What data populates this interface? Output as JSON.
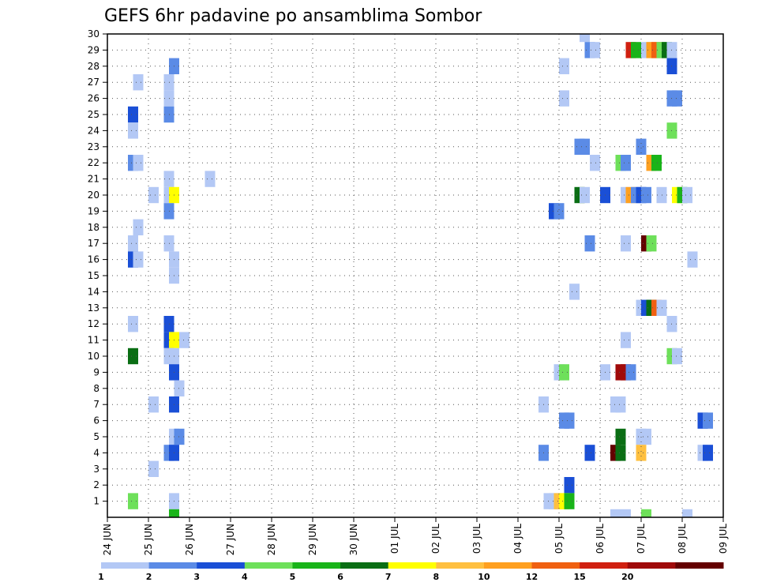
{
  "chart_data": {
    "type": "heatmap",
    "title": "GEFS 6hr padavine po ansamblima Sombor",
    "xlabel": "",
    "ylabel": "",
    "x_ticks": [
      "24 JUN",
      "25 JUN",
      "26 JUN",
      "27 JUN",
      "28 JUN",
      "29 JUN",
      "30 JUN",
      "01 JUL",
      "02 JUL",
      "03 JUL",
      "04 JUL",
      "05 JUL",
      "06 JUL",
      "07 JUL",
      "08 JUL",
      "09 JUL"
    ],
    "y_ticks": [
      1,
      2,
      3,
      4,
      5,
      6,
      7,
      8,
      9,
      10,
      11,
      12,
      13,
      14,
      15,
      16,
      17,
      18,
      19,
      20,
      21,
      22,
      23,
      24,
      25,
      26,
      27,
      28,
      29,
      30
    ],
    "xlim_days": [
      0,
      15
    ],
    "ylim": [
      0,
      30
    ],
    "grid": true,
    "colorbar": {
      "labels": [
        "1",
        "2",
        "3",
        "4",
        "5",
        "6",
        "7",
        "8",
        "10",
        "12",
        "15",
        "20"
      ],
      "colors": [
        "#b3c8f5",
        "#5b8be6",
        "#1a4fd6",
        "#6ee05a",
        "#19b419",
        "#0a6e14",
        "#ffff00",
        "#ffc040",
        "#ffa020",
        "#f06010",
        "#d02010",
        "#a00a0a",
        "#640000"
      ]
    },
    "points": [
      [
        23.0,
        30,
        1
      ],
      [
        30.75,
        30,
        3
      ],
      [
        31.0,
        30,
        6
      ],
      [
        23.25,
        29,
        2
      ],
      [
        23.5,
        29,
        1
      ],
      [
        25.25,
        29,
        11
      ],
      [
        25.5,
        29,
        5
      ],
      [
        26.0,
        29,
        1
      ],
      [
        26.25,
        29,
        9
      ],
      [
        26.5,
        29,
        10
      ],
      [
        26.75,
        29,
        4
      ],
      [
        27.0,
        29,
        6
      ],
      [
        27.25,
        29,
        1
      ],
      [
        3.0,
        28,
        2
      ],
      [
        22.0,
        28,
        1
      ],
      [
        27.25,
        28,
        3
      ],
      [
        31.0,
        28,
        2
      ],
      [
        1.25,
        27,
        1
      ],
      [
        2.75,
        27,
        1
      ],
      [
        2.75,
        26,
        1
      ],
      [
        22.0,
        26,
        1
      ],
      [
        27.25,
        26,
        2
      ],
      [
        27.5,
        26,
        2
      ],
      [
        1.0,
        25,
        3
      ],
      [
        2.75,
        25,
        2
      ],
      [
        27.25,
        24,
        4
      ],
      [
        1.0,
        24,
        1
      ],
      [
        22.75,
        23,
        2
      ],
      [
        23.0,
        23,
        2
      ],
      [
        25.75,
        23,
        2
      ],
      [
        1.0,
        22,
        2
      ],
      [
        1.25,
        22,
        1
      ],
      [
        23.5,
        22,
        1
      ],
      [
        24.75,
        22,
        4
      ],
      [
        25.0,
        22,
        2
      ],
      [
        26.25,
        22,
        9
      ],
      [
        26.5,
        22,
        5
      ],
      [
        2.75,
        21,
        1
      ],
      [
        4.75,
        21,
        1
      ],
      [
        2.0,
        20,
        1
      ],
      [
        2.75,
        20,
        1
      ],
      [
        3.0,
        20,
        7
      ],
      [
        22.75,
        20,
        6
      ],
      [
        23.0,
        20,
        1
      ],
      [
        24.0,
        20,
        3
      ],
      [
        25.0,
        20,
        1
      ],
      [
        25.25,
        20,
        9
      ],
      [
        25.5,
        20,
        2
      ],
      [
        25.75,
        20,
        3
      ],
      [
        26.0,
        20,
        2
      ],
      [
        26.75,
        20,
        1
      ],
      [
        27.5,
        20,
        7
      ],
      [
        27.75,
        20,
        5
      ],
      [
        28.0,
        20,
        1
      ],
      [
        2.75,
        19,
        2
      ],
      [
        21.5,
        19,
        3
      ],
      [
        21.75,
        19,
        2
      ],
      [
        1.25,
        18,
        1
      ],
      [
        1.0,
        17,
        1
      ],
      [
        2.75,
        17,
        1
      ],
      [
        23.25,
        17,
        2
      ],
      [
        25.0,
        17,
        1
      ],
      [
        26.0,
        17,
        13
      ],
      [
        26.25,
        17,
        4
      ],
      [
        1.0,
        16,
        3
      ],
      [
        1.25,
        16,
        1
      ],
      [
        3.0,
        16,
        1
      ],
      [
        28.25,
        16,
        1
      ],
      [
        3.0,
        15,
        1
      ],
      [
        22.5,
        14,
        1
      ],
      [
        25.75,
        13,
        1
      ],
      [
        26.0,
        13,
        3
      ],
      [
        26.25,
        13,
        6
      ],
      [
        26.5,
        13,
        10
      ],
      [
        26.75,
        13,
        1
      ],
      [
        1.0,
        12,
        1
      ],
      [
        2.75,
        12,
        3
      ],
      [
        27.25,
        12,
        1
      ],
      [
        2.75,
        11,
        3
      ],
      [
        3.0,
        11,
        7
      ],
      [
        3.5,
        11,
        1
      ],
      [
        25.0,
        11,
        1
      ],
      [
        1.0,
        10,
        6
      ],
      [
        2.75,
        10,
        1
      ],
      [
        3.0,
        10,
        1
      ],
      [
        27.25,
        10,
        4
      ],
      [
        27.5,
        10,
        1
      ],
      [
        3.0,
        9,
        3
      ],
      [
        21.75,
        9,
        1
      ],
      [
        22.0,
        9,
        4
      ],
      [
        24.0,
        9,
        1
      ],
      [
        24.75,
        9,
        12
      ],
      [
        25.0,
        9,
        12
      ],
      [
        25.25,
        9,
        2
      ],
      [
        3.25,
        8,
        1
      ],
      [
        2.0,
        7,
        1
      ],
      [
        3.0,
        7,
        3
      ],
      [
        21.0,
        7,
        1
      ],
      [
        24.5,
        7,
        1
      ],
      [
        24.75,
        7,
        1
      ],
      [
        22.0,
        6,
        2
      ],
      [
        22.25,
        6,
        2
      ],
      [
        28.75,
        6,
        3
      ],
      [
        29.0,
        6,
        2
      ],
      [
        3.0,
        5,
        1
      ],
      [
        3.25,
        5,
        2
      ],
      [
        24.75,
        5,
        6
      ],
      [
        25.75,
        5,
        1
      ],
      [
        26.0,
        5,
        1
      ],
      [
        2.75,
        4,
        2
      ],
      [
        3.0,
        4,
        3
      ],
      [
        21.0,
        4,
        2
      ],
      [
        23.25,
        4,
        3
      ],
      [
        24.5,
        4,
        13
      ],
      [
        24.75,
        4,
        6
      ],
      [
        25.75,
        4,
        8
      ],
      [
        28.75,
        4,
        1
      ],
      [
        29.0,
        4,
        3
      ],
      [
        2.0,
        3,
        1
      ],
      [
        22.25,
        2,
        3
      ],
      [
        1.0,
        1,
        4
      ],
      [
        3.0,
        1,
        1
      ],
      [
        21.25,
        1,
        1
      ],
      [
        21.5,
        1,
        1
      ],
      [
        21.75,
        1,
        8
      ],
      [
        22.0,
        1,
        7
      ],
      [
        22.25,
        1,
        5
      ],
      [
        3.0,
        0,
        5
      ],
      [
        24.5,
        0,
        1
      ],
      [
        25.0,
        0,
        1
      ],
      [
        26.0,
        0,
        4
      ],
      [
        28.0,
        0,
        1
      ]
    ]
  }
}
